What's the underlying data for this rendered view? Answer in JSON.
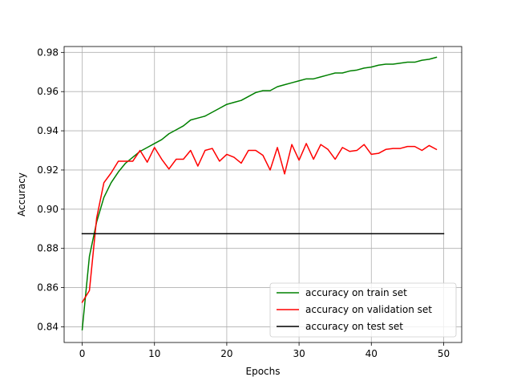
{
  "chart_data": {
    "type": "line",
    "title": "",
    "xlabel": "Epochs",
    "ylabel": "Accuracy",
    "xlim": [
      -2.5,
      52.5
    ],
    "ylim": [
      0.832,
      0.983
    ],
    "xticks": [
      0,
      10,
      20,
      30,
      40,
      50
    ],
    "yticks": [
      0.84,
      0.86,
      0.88,
      0.9,
      0.92,
      0.94,
      0.96,
      0.98
    ],
    "ytick_labels": [
      "0.84",
      "0.86",
      "0.88",
      "0.90",
      "0.92",
      "0.94",
      "0.96",
      "0.98"
    ],
    "grid": true,
    "legend_position": "lower-right",
    "series": [
      {
        "name": "accuracy on train set",
        "color": "#008000",
        "x": [
          0,
          1,
          2,
          3,
          4,
          5,
          6,
          7,
          8,
          9,
          10,
          11,
          12,
          13,
          14,
          15,
          16,
          17,
          18,
          19,
          20,
          21,
          22,
          23,
          24,
          25,
          26,
          27,
          28,
          29,
          30,
          31,
          32,
          33,
          34,
          35,
          36,
          37,
          38,
          39,
          40,
          41,
          42,
          43,
          44,
          45,
          46,
          47,
          48,
          49
        ],
        "y": [
          0.8385,
          0.876,
          0.8935,
          0.906,
          0.9135,
          0.919,
          0.9235,
          0.9265,
          0.9295,
          0.9315,
          0.9335,
          0.9355,
          0.9385,
          0.9405,
          0.9425,
          0.9455,
          0.9465,
          0.9475,
          0.9495,
          0.9515,
          0.9535,
          0.9545,
          0.9555,
          0.9575,
          0.9595,
          0.9605,
          0.9605,
          0.9625,
          0.9635,
          0.9645,
          0.9655,
          0.9665,
          0.9665,
          0.9675,
          0.9685,
          0.9695,
          0.9695,
          0.9705,
          0.971,
          0.972,
          0.9725,
          0.9735,
          0.974,
          0.974,
          0.9745,
          0.975,
          0.975,
          0.976,
          0.9765,
          0.9775
        ]
      },
      {
        "name": "accuracy on validation set",
        "color": "#ff0000",
        "x": [
          0,
          1,
          2,
          3,
          4,
          5,
          6,
          7,
          8,
          9,
          10,
          11,
          12,
          13,
          14,
          15,
          16,
          17,
          18,
          19,
          20,
          21,
          22,
          23,
          24,
          25,
          26,
          27,
          28,
          29,
          30,
          31,
          32,
          33,
          34,
          35,
          36,
          37,
          38,
          39,
          40,
          41,
          42,
          43,
          44,
          45,
          46,
          47,
          48,
          49
        ],
        "y": [
          0.8525,
          0.8585,
          0.8955,
          0.9135,
          0.9185,
          0.9245,
          0.9245,
          0.9245,
          0.93,
          0.924,
          0.9315,
          0.9255,
          0.9205,
          0.9255,
          0.9255,
          0.93,
          0.922,
          0.93,
          0.931,
          0.9245,
          0.928,
          0.9265,
          0.9235,
          0.93,
          0.93,
          0.9275,
          0.92,
          0.9315,
          0.918,
          0.933,
          0.925,
          0.9335,
          0.9255,
          0.933,
          0.9305,
          0.9255,
          0.9315,
          0.9295,
          0.93,
          0.933,
          0.928,
          0.9285,
          0.9305,
          0.931,
          0.931,
          0.932,
          0.932,
          0.93,
          0.9325,
          0.9305
        ]
      },
      {
        "name": "accuracy on test set",
        "color": "#000000",
        "x": [
          0,
          50
        ],
        "y": [
          0.8875,
          0.8875
        ]
      }
    ]
  }
}
